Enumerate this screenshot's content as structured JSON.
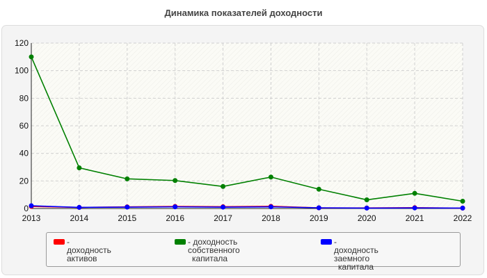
{
  "chart_data": {
    "type": "line",
    "title": "Динамика показателей доходности",
    "x": [
      "2013",
      "2014",
      "2015",
      "2016",
      "2017",
      "2018",
      "2019",
      "2020",
      "2021",
      "2022"
    ],
    "ylim": [
      0,
      120
    ],
    "yticks": [
      0,
      20,
      40,
      60,
      80,
      100,
      120
    ],
    "grid": true,
    "legend_position": "bottom",
    "series": [
      {
        "name": "доходность активов",
        "color": "#ff0000",
        "values": [
          1.5,
          0.8,
          1.2,
          1.5,
          1.3,
          1.6,
          0.5,
          0.4,
          0.6,
          0.3
        ]
      },
      {
        "name": "доходность собственного капитала",
        "color": "#008000",
        "values": [
          110,
          29.5,
          21.5,
          20.3,
          16,
          22.8,
          14,
          6.3,
          11,
          5.3
        ]
      },
      {
        "name": "доходность заемного капитала",
        "color": "#0000ff",
        "values": [
          2,
          0.8,
          1,
          1.2,
          1,
          1.2,
          0.5,
          0.3,
          0.4,
          0.3
        ]
      }
    ],
    "legend": [
      {
        "prefix": "- ",
        "lines": [
          "доходность активов"
        ]
      },
      {
        "prefix": "- ",
        "lines": [
          "доходность собственного",
          "капитала"
        ]
      },
      {
        "prefix": "- ",
        "lines": [
          "доходность заемного",
          "капитала"
        ]
      }
    ]
  }
}
